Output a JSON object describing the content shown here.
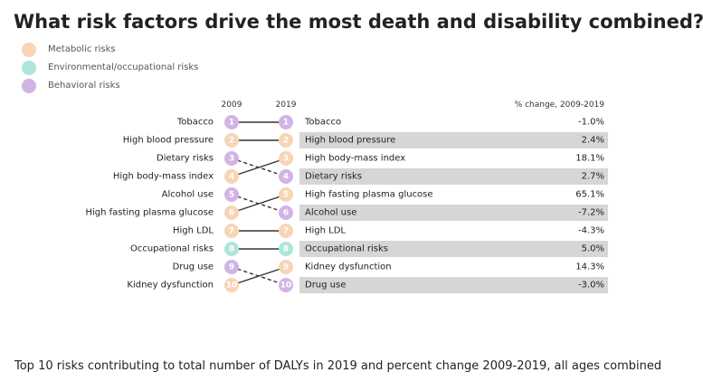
{
  "title": "What risk factors drive the most death and disability combined?",
  "legend": [
    {
      "label": "Metabolic risks",
      "color": "#f7d5b5"
    },
    {
      "label": "Environmental/occupational risks",
      "color": "#aee6da"
    },
    {
      "label": "Behavioral risks",
      "color": "#d1b4e6"
    }
  ],
  "caption": "Top 10 risks contributing to total number of DALYs in 2019 and percent change 2009-2019, all ages combined",
  "chart_data": {
    "type": "table",
    "columns": {
      "year_a": "2009",
      "year_b": "2019",
      "change": "% change, 2009-2019"
    },
    "rank_labels": [
      "1",
      "2",
      "3",
      "4",
      "5",
      "6",
      "7",
      "8",
      "9",
      "10"
    ],
    "ranking_2009": [
      {
        "name": "Tobacco",
        "category": "Behavioral risks"
      },
      {
        "name": "High blood pressure",
        "category": "Metabolic risks"
      },
      {
        "name": "Dietary risks",
        "category": "Behavioral risks"
      },
      {
        "name": "High body-mass index",
        "category": "Metabolic risks"
      },
      {
        "name": "Alcohol use",
        "category": "Behavioral risks"
      },
      {
        "name": "High fasting plasma glucose",
        "category": "Metabolic risks"
      },
      {
        "name": "High LDL",
        "category": "Metabolic risks"
      },
      {
        "name": "Occupational risks",
        "category": "Environmental/occupational risks"
      },
      {
        "name": "Drug use",
        "category": "Behavioral risks"
      },
      {
        "name": "Kidney dysfunction",
        "category": "Metabolic risks"
      }
    ],
    "ranking_2019": [
      {
        "name": "Tobacco",
        "category": "Behavioral risks",
        "change": "-1.0%"
      },
      {
        "name": "High blood pressure",
        "category": "Metabolic risks",
        "change": "2.4%"
      },
      {
        "name": "High body-mass index",
        "category": "Metabolic risks",
        "change": "18.1%"
      },
      {
        "name": "Dietary risks",
        "category": "Behavioral risks",
        "change": "2.7%"
      },
      {
        "name": "High fasting plasma glucose",
        "category": "Metabolic risks",
        "change": "65.1%"
      },
      {
        "name": "Alcohol use",
        "category": "Behavioral risks",
        "change": "-7.2%"
      },
      {
        "name": "High LDL",
        "category": "Metabolic risks",
        "change": "-4.3%"
      },
      {
        "name": "Occupational risks",
        "category": "Environmental/occupational risks",
        "change": "5.0%"
      },
      {
        "name": "Kidney dysfunction",
        "category": "Metabolic risks",
        "change": "14.3%"
      },
      {
        "name": "Drug use",
        "category": "Behavioral risks",
        "change": "-3.0%"
      }
    ],
    "shaded_rows": [
      2,
      4,
      6,
      8,
      10
    ],
    "shade_color": "#d6d6d6",
    "rank_fall_line_style": "dashed"
  }
}
